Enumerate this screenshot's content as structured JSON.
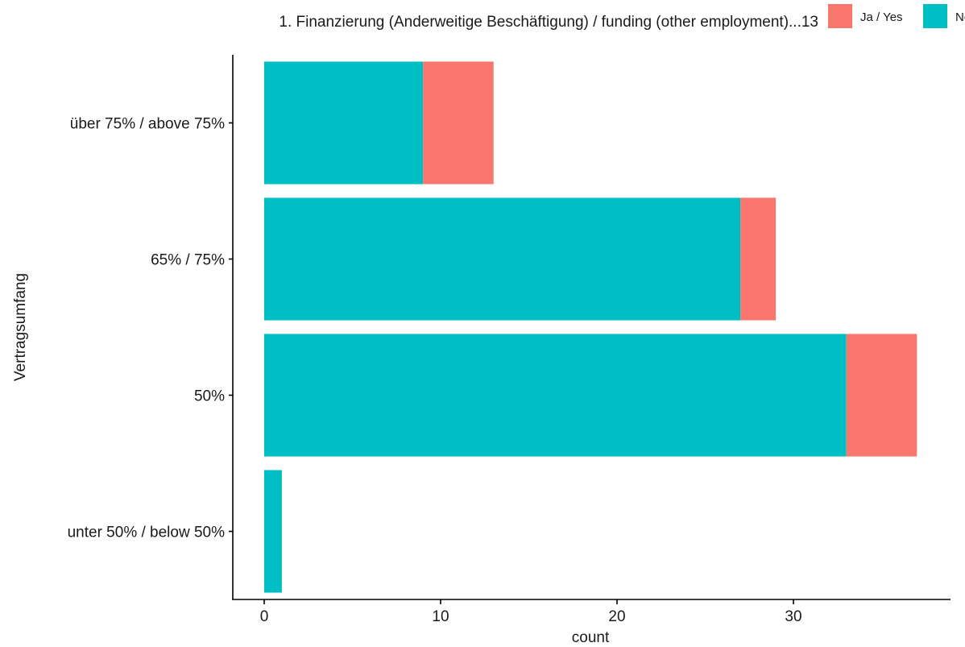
{
  "chart_data": {
    "type": "bar",
    "orientation": "horizontal",
    "stacked": true,
    "title": "",
    "xlabel": "count",
    "ylabel": "Vertragsumfang",
    "categories": [
      "unter 50% / below 50%",
      "50%",
      "65% / 75%",
      "über 75% / above 75%"
    ],
    "series": [
      {
        "name": "Nein / No",
        "color": "#00BFC4",
        "values": [
          1,
          33,
          27,
          9
        ]
      },
      {
        "name": "Ja / Yes",
        "color": "#F8766D",
        "values": [
          0,
          4,
          2,
          4
        ]
      }
    ],
    "xlim": [
      0,
      38
    ],
    "xticks": [
      0,
      10,
      20,
      30
    ],
    "grid": false,
    "legend": {
      "title": "1. Finanzierung (Anderweitige Beschäftigung) / funding (other employment)...13",
      "position": "top",
      "entries": [
        {
          "label": "Ja / Yes",
          "color": "#F8766D"
        },
        {
          "label": "Nein / No",
          "color": "#00BFC4"
        }
      ]
    }
  }
}
